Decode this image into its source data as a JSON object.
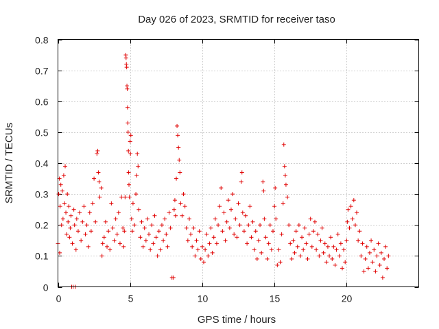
{
  "chart_data": {
    "type": "scatter",
    "title": "Day 026 of 2023, SRMTID for receiver taso",
    "xlabel": "GPS time / hours",
    "ylabel": "SRMTID / TECUs",
    "xlim": [
      0,
      25
    ],
    "ylim": [
      0,
      0.8
    ],
    "xticks": [
      0,
      5,
      10,
      15,
      20
    ],
    "yticks": [
      0,
      0.1,
      0.2,
      0.3,
      0.4,
      0.5,
      0.6,
      0.7,
      0.8
    ],
    "xtick_labels": [
      "0",
      "5",
      "10",
      "15",
      "20"
    ],
    "ytick_labels": [
      "0",
      "0.1",
      "0.2",
      "0.3",
      "0.4",
      "0.5",
      "0.6",
      "0.7",
      "0.8"
    ],
    "grid": true,
    "marker": "+",
    "color": "#e00000",
    "series": [
      {
        "name": "SRMTID",
        "points": [
          [
            0.0,
            0.14
          ],
          [
            0.05,
            0.3
          ],
          [
            0.1,
            0.35
          ],
          [
            0.12,
            0.11
          ],
          [
            0.15,
            0.26
          ],
          [
            0.2,
            0.33
          ],
          [
            0.25,
            0.2
          ],
          [
            0.3,
            0.31
          ],
          [
            0.35,
            0.22
          ],
          [
            0.4,
            0.36
          ],
          [
            0.45,
            0.27
          ],
          [
            0.5,
            0.39
          ],
          [
            0.55,
            0.24
          ],
          [
            0.6,
            0.17
          ],
          [
            0.65,
            0.3
          ],
          [
            0.7,
            0.21
          ],
          [
            0.75,
            0.26
          ],
          [
            0.8,
            0.16
          ],
          [
            0.85,
            0.19
          ],
          [
            0.9,
            0.23
          ],
          [
            0.95,
            0.0
          ],
          [
            1.0,
            0.14
          ],
          [
            1.05,
            0.0
          ],
          [
            1.1,
            0.25
          ],
          [
            1.15,
            0.2
          ],
          [
            1.2,
            0.0
          ],
          [
            1.25,
            0.12
          ],
          [
            1.3,
            0.22
          ],
          [
            1.4,
            0.18
          ],
          [
            1.5,
            0.24
          ],
          [
            1.6,
            0.15
          ],
          [
            1.7,
            0.21
          ],
          [
            1.8,
            0.26
          ],
          [
            1.9,
            0.17
          ],
          [
            2.0,
            0.2
          ],
          [
            2.1,
            0.13
          ],
          [
            2.2,
            0.24
          ],
          [
            2.3,
            0.18
          ],
          [
            2.4,
            0.27
          ],
          [
            2.5,
            0.35
          ],
          [
            2.6,
            0.21
          ],
          [
            2.7,
            0.43
          ],
          [
            2.75,
            0.44
          ],
          [
            2.8,
            0.37
          ],
          [
            2.85,
            0.34
          ],
          [
            2.9,
            0.29
          ],
          [
            3.0,
            0.32
          ],
          [
            3.05,
            0.1
          ],
          [
            3.1,
            0.14
          ],
          [
            3.2,
            0.16
          ],
          [
            3.3,
            0.21
          ],
          [
            3.4,
            0.13
          ],
          [
            3.5,
            0.18
          ],
          [
            3.6,
            0.12
          ],
          [
            3.7,
            0.27
          ],
          [
            3.8,
            0.19
          ],
          [
            3.9,
            0.15
          ],
          [
            4.0,
            0.22
          ],
          [
            4.1,
            0.17
          ],
          [
            4.2,
            0.24
          ],
          [
            4.3,
            0.14
          ],
          [
            4.4,
            0.29
          ],
          [
            4.5,
            0.19
          ],
          [
            4.55,
            0.13
          ],
          [
            4.6,
            0.18
          ],
          [
            4.65,
            0.29
          ],
          [
            4.7,
            0.75
          ],
          [
            4.72,
            0.74
          ],
          [
            4.74,
            0.72
          ],
          [
            4.76,
            0.71
          ],
          [
            4.78,
            0.65
          ],
          [
            4.8,
            0.64
          ],
          [
            4.82,
            0.58
          ],
          [
            4.84,
            0.53
          ],
          [
            4.86,
            0.5
          ],
          [
            4.88,
            0.44
          ],
          [
            4.9,
            0.37
          ],
          [
            4.92,
            0.33
          ],
          [
            4.95,
            0.29
          ],
          [
            5.0,
            0.47
          ],
          [
            5.02,
            0.43
          ],
          [
            5.05,
            0.49
          ],
          [
            5.1,
            0.22
          ],
          [
            5.15,
            0.18
          ],
          [
            5.2,
            0.27
          ],
          [
            5.3,
            0.2
          ],
          [
            5.4,
            0.3
          ],
          [
            5.45,
            0.36
          ],
          [
            5.5,
            0.43
          ],
          [
            5.55,
            0.39
          ],
          [
            5.6,
            0.25
          ],
          [
            5.7,
            0.16
          ],
          [
            5.8,
            0.21
          ],
          [
            5.9,
            0.13
          ],
          [
            6.0,
            0.19
          ],
          [
            6.1,
            0.15
          ],
          [
            6.2,
            0.22
          ],
          [
            6.3,
            0.17
          ],
          [
            6.4,
            0.12
          ],
          [
            6.5,
            0.2
          ],
          [
            6.6,
            0.14
          ],
          [
            6.7,
            0.23
          ],
          [
            6.8,
            0.16
          ],
          [
            6.9,
            0.1
          ],
          [
            7.0,
            0.18
          ],
          [
            7.1,
            0.12
          ],
          [
            7.2,
            0.2
          ],
          [
            7.3,
            0.15
          ],
          [
            7.4,
            0.22
          ],
          [
            7.5,
            0.17
          ],
          [
            7.6,
            0.13
          ],
          [
            7.7,
            0.24
          ],
          [
            7.8,
            0.19
          ],
          [
            7.9,
            0.03
          ],
          [
            8.0,
            0.03
          ],
          [
            8.05,
            0.25
          ],
          [
            8.1,
            0.28
          ],
          [
            8.15,
            0.23
          ],
          [
            8.2,
            0.35
          ],
          [
            8.25,
            0.52
          ],
          [
            8.3,
            0.49
          ],
          [
            8.35,
            0.45
          ],
          [
            8.4,
            0.41
          ],
          [
            8.45,
            0.37
          ],
          [
            8.5,
            0.27
          ],
          [
            8.6,
            0.23
          ],
          [
            8.7,
            0.3
          ],
          [
            8.8,
            0.26
          ],
          [
            8.9,
            0.19
          ],
          [
            9.0,
            0.15
          ],
          [
            9.1,
            0.22
          ],
          [
            9.2,
            0.17
          ],
          [
            9.3,
            0.13
          ],
          [
            9.4,
            0.19
          ],
          [
            9.5,
            0.1
          ],
          [
            9.6,
            0.15
          ],
          [
            9.7,
            0.12
          ],
          [
            9.8,
            0.18
          ],
          [
            9.9,
            0.09
          ],
          [
            10.0,
            0.13
          ],
          [
            10.1,
            0.08
          ],
          [
            10.2,
            0.12
          ],
          [
            10.3,
            0.17
          ],
          [
            10.4,
            0.1
          ],
          [
            10.5,
            0.14
          ],
          [
            10.6,
            0.19
          ],
          [
            10.7,
            0.11
          ],
          [
            10.8,
            0.16
          ],
          [
            10.9,
            0.22
          ],
          [
            11.0,
            0.14
          ],
          [
            11.1,
            0.2
          ],
          [
            11.2,
            0.26
          ],
          [
            11.3,
            0.32
          ],
          [
            11.4,
            0.18
          ],
          [
            11.5,
            0.24
          ],
          [
            11.6,
            0.15
          ],
          [
            11.7,
            0.21
          ],
          [
            11.8,
            0.28
          ],
          [
            11.9,
            0.19
          ],
          [
            12.0,
            0.25
          ],
          [
            12.1,
            0.3
          ],
          [
            12.2,
            0.17
          ],
          [
            12.3,
            0.22
          ],
          [
            12.4,
            0.16
          ],
          [
            12.5,
            0.27
          ],
          [
            12.6,
            0.2
          ],
          [
            12.7,
            0.34
          ],
          [
            12.75,
            0.37
          ],
          [
            12.8,
            0.24
          ],
          [
            12.9,
            0.18
          ],
          [
            13.0,
            0.23
          ],
          [
            13.1,
            0.14
          ],
          [
            13.2,
            0.2
          ],
          [
            13.3,
            0.26
          ],
          [
            13.4,
            0.16
          ],
          [
            13.5,
            0.21
          ],
          [
            13.6,
            0.12
          ],
          [
            13.7,
            0.18
          ],
          [
            13.8,
            0.09
          ],
          [
            13.9,
            0.15
          ],
          [
            14.0,
            0.2
          ],
          [
            14.1,
            0.11
          ],
          [
            14.2,
            0.34
          ],
          [
            14.25,
            0.31
          ],
          [
            14.3,
            0.22
          ],
          [
            14.4,
            0.16
          ],
          [
            14.5,
            0.09
          ],
          [
            14.6,
            0.14
          ],
          [
            14.7,
            0.2
          ],
          [
            14.8,
            0.12
          ],
          [
            14.9,
            0.18
          ],
          [
            15.0,
            0.26
          ],
          [
            15.05,
            0.32
          ],
          [
            15.1,
            0.22
          ],
          [
            15.2,
            0.07
          ],
          [
            15.3,
            0.12
          ],
          [
            15.4,
            0.08
          ],
          [
            15.5,
            0.17
          ],
          [
            15.6,
            0.27
          ],
          [
            15.65,
            0.46
          ],
          [
            15.7,
            0.39
          ],
          [
            15.75,
            0.36
          ],
          [
            15.8,
            0.33
          ],
          [
            15.9,
            0.29
          ],
          [
            16.0,
            0.2
          ],
          [
            16.1,
            0.14
          ],
          [
            16.2,
            0.09
          ],
          [
            16.3,
            0.15
          ],
          [
            16.4,
            0.11
          ],
          [
            16.5,
            0.18
          ],
          [
            16.6,
            0.13
          ],
          [
            16.7,
            0.2
          ],
          [
            16.8,
            0.1
          ],
          [
            16.9,
            0.16
          ],
          [
            17.0,
            0.12
          ],
          [
            17.1,
            0.19
          ],
          [
            17.2,
            0.14
          ],
          [
            17.3,
            0.09
          ],
          [
            17.4,
            0.17
          ],
          [
            17.5,
            0.22
          ],
          [
            17.6,
            0.13
          ],
          [
            17.7,
            0.18
          ],
          [
            17.8,
            0.21
          ],
          [
            17.9,
            0.12
          ],
          [
            18.0,
            0.17
          ],
          [
            18.1,
            0.1
          ],
          [
            18.2,
            0.15
          ],
          [
            18.3,
            0.19
          ],
          [
            18.4,
            0.11
          ],
          [
            18.5,
            0.14
          ],
          [
            18.6,
            0.08
          ],
          [
            18.7,
            0.13
          ],
          [
            18.8,
            0.1
          ],
          [
            18.9,
            0.16
          ],
          [
            19.0,
            0.09
          ],
          [
            19.1,
            0.13
          ],
          [
            19.2,
            0.07
          ],
          [
            19.3,
            0.12
          ],
          [
            19.4,
            0.17
          ],
          [
            19.5,
            0.1
          ],
          [
            19.6,
            0.14
          ],
          [
            19.7,
            0.06
          ],
          [
            19.8,
            0.12
          ],
          [
            19.9,
            0.08
          ],
          [
            20.0,
            0.15
          ],
          [
            20.05,
            0.21
          ],
          [
            20.1,
            0.25
          ],
          [
            20.2,
            0.19
          ],
          [
            20.3,
            0.26
          ],
          [
            20.4,
            0.22
          ],
          [
            20.5,
            0.28
          ],
          [
            20.6,
            0.2
          ],
          [
            20.7,
            0.24
          ],
          [
            20.8,
            0.15
          ],
          [
            20.9,
            0.18
          ],
          [
            21.0,
            0.1
          ],
          [
            21.1,
            0.14
          ],
          [
            21.2,
            0.05
          ],
          [
            21.3,
            0.09
          ],
          [
            21.4,
            0.13
          ],
          [
            21.5,
            0.06
          ],
          [
            21.6,
            0.11
          ],
          [
            21.7,
            0.15
          ],
          [
            21.8,
            0.08
          ],
          [
            21.9,
            0.12
          ],
          [
            22.0,
            0.05
          ],
          [
            22.1,
            0.1
          ],
          [
            22.2,
            0.14
          ],
          [
            22.3,
            0.07
          ],
          [
            22.4,
            0.11
          ],
          [
            22.5,
            0.03
          ],
          [
            22.6,
            0.09
          ],
          [
            22.7,
            0.13
          ],
          [
            22.8,
            0.06
          ],
          [
            22.9,
            0.1
          ]
        ]
      }
    ]
  }
}
